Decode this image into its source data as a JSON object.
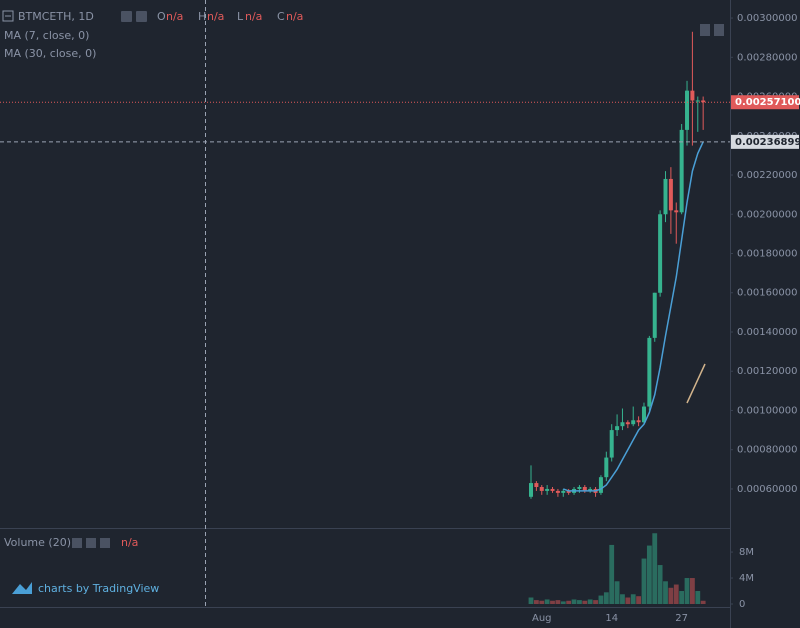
{
  "header": {
    "symbol": "BTMCETH, 1D",
    "ohlc": [
      {
        "key": "O",
        "value": "n/a"
      },
      {
        "key": "H",
        "value": "n/a"
      },
      {
        "key": "L",
        "value": "n/a"
      },
      {
        "key": "C",
        "value": "n/a"
      }
    ]
  },
  "footer": {
    "logo": "charts by TradingView"
  },
  "chart_data": {
    "type": "candlestick",
    "categories": [
      null,
      null,
      "Aug",
      null,
      null,
      null,
      null,
      null,
      null,
      null,
      null,
      null,
      null,
      null,
      null,
      "14",
      null,
      null,
      null,
      null,
      null,
      null,
      null,
      null,
      null,
      null,
      null,
      null,
      "27",
      null,
      null,
      null,
      null
    ],
    "open": [
      0.00056,
      0.00063,
      0.00061,
      0.00059,
      0.0006,
      0.00059,
      0.00058,
      0.00059,
      0.00058,
      0.0006,
      0.00061,
      0.00059,
      0.0006,
      0.00058,
      0.00066,
      0.00076,
      0.0009,
      0.00092,
      0.00094,
      0.00093,
      0.00095,
      0.00094,
      0.00102,
      0.00137,
      0.0016,
      0.002,
      0.00218,
      0.00202,
      0.00201,
      0.00243,
      0.00263,
      0.00258,
      0.00258
    ],
    "high": [
      0.00072,
      0.00064,
      0.00062,
      0.00062,
      0.00061,
      0.0006,
      0.0006,
      0.0006,
      0.00061,
      0.00062,
      0.00062,
      0.00061,
      0.00061,
      0.00067,
      0.00079,
      0.00093,
      0.00098,
      0.00101,
      0.00095,
      0.00102,
      0.00097,
      0.00104,
      0.00138,
      0.0016,
      0.00202,
      0.00222,
      0.00224,
      0.00206,
      0.00246,
      0.00268,
      0.00293,
      0.0026,
      0.0026
    ],
    "low": [
      0.00055,
      0.00059,
      0.00057,
      0.00057,
      0.00058,
      0.00056,
      0.00056,
      0.00057,
      0.00057,
      0.00058,
      0.00058,
      0.00058,
      0.00056,
      0.00057,
      0.00064,
      0.00074,
      0.00087,
      0.0009,
      0.00091,
      0.00092,
      0.00092,
      0.00093,
      0.001,
      0.00135,
      0.00158,
      0.00196,
      0.0019,
      0.00185,
      0.002,
      0.00235,
      0.00235,
      0.00242,
      0.00243
    ],
    "close": [
      0.00063,
      0.00061,
      0.00059,
      0.0006,
      0.00059,
      0.00058,
      0.00059,
      0.00058,
      0.0006,
      0.00061,
      0.00059,
      0.0006,
      0.00058,
      0.00066,
      0.00076,
      0.0009,
      0.00092,
      0.00094,
      0.00093,
      0.00095,
      0.00094,
      0.00102,
      0.00137,
      0.0016,
      0.002,
      0.00218,
      0.00202,
      0.00201,
      0.00243,
      0.00263,
      0.00258,
      0.00258,
      0.002571
    ],
    "up_color": "#36b38f",
    "down_color": "#e05a5a",
    "series": [
      {
        "name": "MA (7, close, 0)",
        "color": "#4a9fd6",
        "values": [
          null,
          null,
          null,
          null,
          null,
          null,
          0.0006,
          0.00059,
          0.00059,
          0.00059,
          0.00059,
          0.00059,
          0.00059,
          0.0006,
          0.00062,
          0.00066,
          0.0007,
          0.00075,
          0.0008,
          0.00085,
          0.0009,
          0.00093,
          0.00099,
          0.00108,
          0.00122,
          0.00138,
          0.00153,
          0.00168,
          0.00187,
          0.00206,
          0.00222,
          0.00231,
          0.00236899
        ],
        "value_labels": [
          null,
          null,
          null,
          null,
          null,
          null,
          null,
          null,
          null,
          null,
          null,
          null,
          null,
          null,
          null,
          null,
          null,
          null,
          null,
          null,
          null,
          null,
          null,
          null,
          null,
          null,
          null,
          null,
          null,
          null,
          null,
          null,
          "0.00236899"
        ]
      },
      {
        "name": "MA (30, close, 0)",
        "color": "#e0a050",
        "values": [
          null,
          null,
          null,
          null,
          null,
          null,
          null,
          null,
          null,
          null,
          null,
          null,
          null,
          null,
          null,
          null,
          null,
          null,
          null,
          null,
          null,
          null,
          null,
          null,
          null,
          null,
          null,
          null,
          null,
          null,
          null,
          null,
          null
        ]
      }
    ],
    "price_line": {
      "value": 0.002571,
      "label": "0.00257100",
      "color": "#e05a5a"
    },
    "ylim": [
      0.000401,
      0.003092
    ],
    "yticks": [
      {
        "value": 0.0006,
        "label": "0.00060000"
      },
      {
        "value": 0.0008,
        "label": "0.00080000"
      },
      {
        "value": 0.001,
        "label": "0.00100000"
      },
      {
        "value": 0.0012,
        "label": "0.00120000"
      },
      {
        "value": 0.0014,
        "label": "0.00140000"
      },
      {
        "value": 0.0016,
        "label": "0.00160000"
      },
      {
        "value": 0.0018,
        "label": "0.00180000"
      },
      {
        "value": 0.002,
        "label": "0.00200000"
      },
      {
        "value": 0.0022,
        "label": "0.00220000"
      },
      {
        "value": 0.0024,
        "label": "0.00240000"
      },
      {
        "value": 0.0026,
        "label": "0.00260000"
      },
      {
        "value": 0.0028,
        "label": "0.00280000"
      },
      {
        "value": 0.003,
        "label": "0.00300000"
      }
    ],
    "grid": false,
    "volume": {
      "title": "Volume (20)",
      "status": "n/a",
      "values": [
        1000000,
        600000,
        500000,
        700000,
        500000,
        600000,
        400000,
        500000,
        700000,
        600000,
        500000,
        700000,
        600000,
        1300000,
        1800000,
        9100000,
        3500000,
        1500000,
        1000000,
        1500000,
        1200000,
        7000000,
        9000000,
        10900000,
        6000000,
        3500000,
        2500000,
        3000000,
        2000000,
        4000000,
        4000000,
        2000000,
        500000
      ],
      "ylim": [
        0,
        11400000
      ],
      "yticks": [
        0,
        {
          "value": 4000000,
          "label": "4M"
        },
        {
          "value": 8000000,
          "label": "8M"
        }
      ]
    }
  }
}
